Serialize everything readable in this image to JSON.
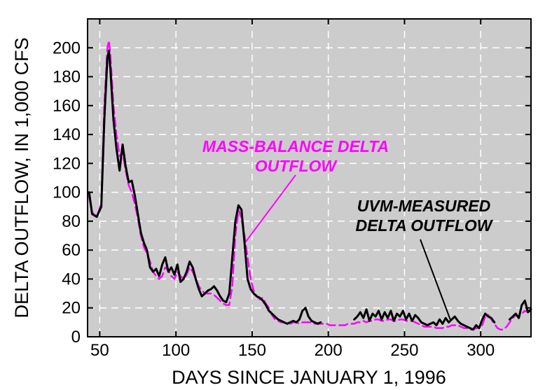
{
  "chart_data": {
    "type": "line",
    "title": "",
    "xlabel": "DAYS SINCE JANUARY 1, 1996",
    "ylabel": "DELTA OUTFLOW, IN 1,000 CFS",
    "xlim": [
      42,
      333
    ],
    "ylim": [
      0,
      220
    ],
    "x_ticks": [
      50,
      100,
      150,
      200,
      250,
      300
    ],
    "y_ticks": [
      0,
      20,
      40,
      60,
      80,
      100,
      120,
      140,
      160,
      180,
      200
    ],
    "x_tick_labels": [
      "50",
      "100",
      "150",
      "200",
      "250",
      "300"
    ],
    "y_tick_labels": [
      "0",
      "20",
      "40",
      "60",
      "80",
      "100",
      "120",
      "140",
      "160",
      "180",
      "200"
    ],
    "grid": true,
    "background": "#cccccc",
    "annotations": [
      {
        "lines": [
          "MASS-BALANCE DELTA",
          "OUTFLOW"
        ],
        "color": "#ff00ff",
        "points_to": [
          146,
          66
        ]
      },
      {
        "lines": [
          "UVM-MEASURED",
          "DELTA OUTFLOW"
        ],
        "color": "#000000",
        "points_to": [
          280,
          12
        ]
      }
    ],
    "series": [
      {
        "name": "UVM-MEASURED DELTA OUTFLOW",
        "color": "#000000",
        "style": "solid",
        "segments": [
          [
            [
              43,
              100
            ],
            [
              45,
              85
            ],
            [
              48,
              83
            ],
            [
              51,
              90
            ],
            [
              53,
              150
            ],
            [
              55,
              193
            ],
            [
              56,
              198
            ],
            [
              57,
              185
            ],
            [
              59,
              150
            ],
            [
              61,
              130
            ],
            [
              63,
              115
            ],
            [
              65,
              133
            ],
            [
              67,
              118
            ],
            [
              69,
              107
            ],
            [
              71,
              108
            ],
            [
              73,
              98
            ],
            [
              75,
              85
            ],
            [
              77,
              72
            ],
            [
              79,
              65
            ],
            [
              81,
              60
            ],
            [
              83,
              48
            ],
            [
              85,
              45
            ],
            [
              87,
              47
            ],
            [
              89,
              42
            ],
            [
              91,
              50
            ],
            [
              93,
              55
            ],
            [
              95,
              45
            ],
            [
              97,
              48
            ],
            [
              99,
              43
            ],
            [
              101,
              50
            ],
            [
              103,
              38
            ],
            [
              105,
              40
            ],
            [
              107,
              45
            ],
            [
              109,
              52
            ],
            [
              111,
              48
            ],
            [
              113,
              40
            ],
            [
              115,
              33
            ],
            [
              117,
              28
            ],
            [
              119,
              30
            ],
            [
              121,
              32
            ],
            [
              123,
              33
            ],
            [
              125,
              35
            ],
            [
              127,
              32
            ],
            [
              129,
              28
            ],
            [
              131,
              25
            ],
            [
              133,
              24
            ],
            [
              135,
              30
            ],
            [
              137,
              55
            ],
            [
              139,
              80
            ],
            [
              141,
              91
            ],
            [
              143,
              88
            ],
            [
              145,
              65
            ],
            [
              147,
              40
            ],
            [
              149,
              33
            ],
            [
              151,
              30
            ],
            [
              153,
              28
            ],
            [
              155,
              27
            ],
            [
              157,
              25
            ],
            [
              159,
              22
            ],
            [
              161,
              18
            ],
            [
              163,
              16
            ],
            [
              165,
              14
            ],
            [
              167,
              12
            ],
            [
              169,
              11
            ],
            [
              171,
              10
            ],
            [
              173,
              9
            ],
            [
              175,
              10
            ],
            [
              177,
              11
            ],
            [
              179,
              10
            ],
            [
              181,
              12
            ],
            [
              183,
              18
            ],
            [
              185,
              20
            ],
            [
              187,
              14
            ],
            [
              189,
              11
            ],
            [
              191,
              10
            ],
            [
              193,
              9
            ],
            [
              195,
              10
            ]
          ],
          [
            [
              217,
              12
            ],
            [
              219,
              14
            ],
            [
              221,
              17
            ],
            [
              223,
              13
            ],
            [
              225,
              19
            ],
            [
              227,
              11
            ],
            [
              229,
              16
            ],
            [
              231,
              14
            ],
            [
              233,
              18
            ],
            [
              235,
              12
            ],
            [
              237,
              17
            ],
            [
              239,
              13
            ],
            [
              241,
              18
            ],
            [
              243,
              11
            ],
            [
              245,
              16
            ],
            [
              247,
              14
            ],
            [
              249,
              18
            ],
            [
              251,
              12
            ],
            [
              253,
              16
            ],
            [
              255,
              11
            ],
            [
              257,
              15
            ],
            [
              259,
              13
            ],
            [
              261,
              10
            ],
            [
              263,
              9
            ],
            [
              265,
              8
            ],
            [
              267,
              9
            ],
            [
              269,
              10
            ],
            [
              271,
              8
            ],
            [
              273,
              12
            ],
            [
              275,
              9
            ],
            [
              277,
              13
            ],
            [
              279,
              10
            ],
            [
              281,
              12
            ],
            [
              283,
              14
            ],
            [
              285,
              11
            ],
            [
              287,
              9
            ],
            [
              289,
              8
            ],
            [
              291,
              7
            ],
            [
              293,
              6
            ],
            [
              295,
              5
            ],
            [
              297,
              8
            ],
            [
              299,
              6
            ],
            [
              301,
              12
            ],
            [
              303,
              16
            ],
            [
              305,
              14
            ],
            [
              307,
              13
            ],
            [
              309,
              10
            ]
          ],
          [
            [
              319,
              12
            ],
            [
              321,
              14
            ],
            [
              323,
              16
            ],
            [
              325,
              13
            ],
            [
              327,
              22
            ],
            [
              329,
              25
            ],
            [
              331,
              17
            ],
            [
              333,
              19
            ]
          ]
        ]
      },
      {
        "name": "MASS-BALANCE DELTA OUTFLOW",
        "color": "#ff00ff",
        "style": "dashed",
        "segments": [
          [
            [
              43,
              97
            ],
            [
              45,
              86
            ],
            [
              48,
              83
            ],
            [
              51,
              92
            ],
            [
              53,
              160
            ],
            [
              55,
              200
            ],
            [
              56,
              205
            ],
            [
              57,
              195
            ],
            [
              59,
              160
            ],
            [
              61,
              140
            ],
            [
              63,
              125
            ],
            [
              65,
              128
            ],
            [
              67,
              115
            ],
            [
              69,
              105
            ],
            [
              71,
              100
            ],
            [
              73,
              92
            ],
            [
              75,
              82
            ],
            [
              77,
              70
            ],
            [
              79,
              62
            ],
            [
              81,
              58
            ],
            [
              83,
              52
            ],
            [
              85,
              45
            ],
            [
              87,
              42
            ],
            [
              89,
              40
            ],
            [
              91,
              42
            ],
            [
              93,
              48
            ],
            [
              95,
              46
            ],
            [
              97,
              42
            ],
            [
              99,
              40
            ],
            [
              101,
              45
            ],
            [
              103,
              42
            ],
            [
              105,
              40
            ],
            [
              107,
              43
            ],
            [
              109,
              48
            ],
            [
              111,
              45
            ],
            [
              113,
              40
            ],
            [
              115,
              35
            ],
            [
              117,
              32
            ],
            [
              119,
              30
            ],
            [
              121,
              30
            ],
            [
              123,
              30
            ],
            [
              125,
              29
            ],
            [
              127,
              27
            ],
            [
              129,
              25
            ],
            [
              131,
              23
            ],
            [
              133,
              22
            ],
            [
              135,
              22
            ],
            [
              137,
              35
            ],
            [
              139,
              70
            ],
            [
              141,
              88
            ],
            [
              143,
              82
            ],
            [
              145,
              70
            ],
            [
              147,
              55
            ],
            [
              149,
              40
            ],
            [
              151,
              32
            ],
            [
              153,
              28
            ],
            [
              155,
              26
            ],
            [
              157,
              27
            ],
            [
              159,
              23
            ],
            [
              161,
              20
            ],
            [
              163,
              15
            ],
            [
              165,
              12
            ],
            [
              167,
              11
            ],
            [
              169,
              10
            ],
            [
              171,
              10
            ],
            [
              173,
              9
            ],
            [
              175,
              9
            ],
            [
              177,
              10
            ],
            [
              179,
              10
            ],
            [
              181,
              9
            ],
            [
              183,
              10
            ],
            [
              185,
              10
            ],
            [
              187,
              10
            ],
            [
              189,
              10
            ],
            [
              191,
              9
            ],
            [
              193,
              9
            ],
            [
              195,
              9
            ],
            [
              197,
              9
            ],
            [
              199,
              9
            ],
            [
              201,
              8
            ],
            [
              203,
              8
            ],
            [
              205,
              8
            ],
            [
              207,
              8
            ],
            [
              209,
              8
            ],
            [
              211,
              8
            ],
            [
              213,
              9
            ],
            [
              215,
              9
            ],
            [
              217,
              9
            ],
            [
              219,
              10
            ],
            [
              221,
              10
            ],
            [
              223,
              11
            ],
            [
              225,
              10
            ],
            [
              227,
              11
            ],
            [
              229,
              11
            ],
            [
              231,
              12
            ],
            [
              233,
              12
            ],
            [
              235,
              11
            ],
            [
              237,
              11
            ],
            [
              239,
              12
            ],
            [
              241,
              12
            ],
            [
              243,
              11
            ],
            [
              245,
              11
            ],
            [
              247,
              12
            ],
            [
              249,
              12
            ],
            [
              251,
              11
            ],
            [
              253,
              11
            ],
            [
              255,
              11
            ],
            [
              257,
              10
            ],
            [
              259,
              9
            ],
            [
              261,
              8
            ],
            [
              263,
              7
            ],
            [
              265,
              7
            ],
            [
              267,
              7
            ],
            [
              269,
              7
            ],
            [
              271,
              6
            ],
            [
              273,
              6
            ],
            [
              275,
              6
            ],
            [
              277,
              7
            ],
            [
              279,
              7
            ],
            [
              281,
              8
            ],
            [
              283,
              8
            ],
            [
              285,
              8
            ],
            [
              287,
              7
            ],
            [
              289,
              6
            ],
            [
              291,
              6
            ],
            [
              293,
              5
            ],
            [
              295,
              5
            ],
            [
              297,
              6
            ],
            [
              299,
              6
            ],
            [
              301,
              8
            ],
            [
              303,
              14
            ],
            [
              305,
              15
            ],
            [
              307,
              12
            ],
            [
              309,
              9
            ],
            [
              311,
              6
            ],
            [
              313,
              5
            ],
            [
              315,
              5
            ],
            [
              317,
              7
            ],
            [
              319,
              10
            ],
            [
              321,
              13
            ],
            [
              323,
              15
            ],
            [
              325,
              14
            ],
            [
              327,
              16
            ],
            [
              329,
              18
            ],
            [
              331,
              17
            ],
            [
              333,
              18
            ]
          ]
        ]
      }
    ]
  }
}
